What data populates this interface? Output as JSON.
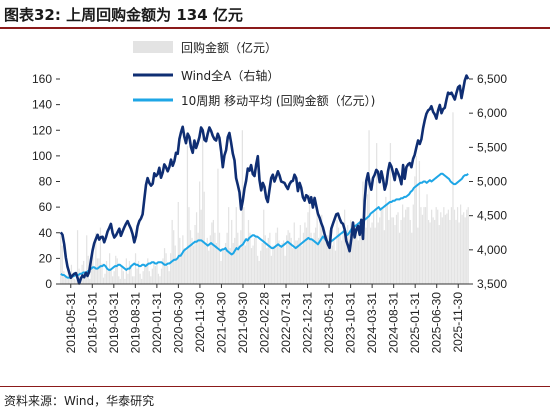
{
  "title": "图表32:   上周回购金额为 134 亿元",
  "source": "资料来源：Wind，华泰研究",
  "colors": {
    "bars": "#e3e3e3",
    "wind": "#0f2e73",
    "ma": "#1ea6e6",
    "rule": "#8b1a1a"
  },
  "chart_data": {
    "type": "bar+line",
    "x_ticks": [
      "2018-05-31",
      "2018-10-31",
      "2019-03-31",
      "2019-08-31",
      "2020-01-31",
      "2020-06-30",
      "2020-11-30",
      "2021-04-30",
      "2021-09-30",
      "2022-02-28",
      "2022-07-31",
      "2022-12-31",
      "2023-05-31",
      "2023-10-31",
      "2024-03-31",
      "2024-08-31",
      "2025-01-31",
      "2025-06-30",
      "2025-11-30"
    ],
    "y_left": {
      "min": 0,
      "max": 160,
      "ticks": [
        0,
        20,
        40,
        60,
        80,
        100,
        120,
        140,
        160
      ]
    },
    "y_right": {
      "min": 3500,
      "max": 6500,
      "ticks": [
        "3,500",
        "4,000",
        "4,500",
        "5,000",
        "5,500",
        "6,000",
        "6,500"
      ]
    },
    "legend": [
      "回购金额（亿元）",
      "Wind全A（右轴）",
      "10周期 移动平均 (回购金额（亿元）)"
    ],
    "series": [
      {
        "name": "回购金额（亿元）",
        "type": "bar",
        "axis": "left",
        "values": [
          38,
          30,
          10,
          6,
          4,
          9,
          7,
          15,
          5,
          4,
          3,
          42,
          12,
          2,
          15,
          18,
          6,
          38,
          22,
          4,
          22,
          28,
          12,
          40,
          20,
          20,
          44,
          16,
          5,
          8,
          18,
          10,
          24,
          12,
          6,
          10,
          22,
          20,
          6,
          4,
          14,
          10,
          4,
          20,
          8,
          18,
          14,
          6,
          6,
          24,
          12,
          18,
          8,
          4,
          10,
          14,
          16,
          20,
          10,
          6,
          12,
          18,
          14,
          16,
          8,
          6,
          12,
          20,
          28,
          24,
          14,
          10,
          24,
          50,
          42,
          30,
          20,
          64,
          36,
          24,
          38,
          28,
          26,
          108,
          60,
          42,
          36,
          30,
          46,
          56,
          40,
          80,
          58,
          120,
          72,
          30,
          36,
          26,
          38,
          48,
          50,
          40,
          32,
          90,
          40,
          18,
          28,
          26,
          32,
          40,
          60,
          28,
          50,
          32,
          36,
          60,
          40,
          30,
          42,
          120,
          60,
          30,
          36,
          50,
          40,
          28,
          30,
          36,
          38,
          22,
          18,
          26,
          32,
          58,
          38,
          28,
          36,
          40,
          22,
          30,
          28,
          40,
          44,
          34,
          28,
          32,
          34,
          22,
          38,
          42,
          40,
          36,
          28,
          48,
          34,
          34,
          36,
          46,
          30,
          40,
          48,
          44,
          56,
          70,
          40,
          34,
          40,
          44,
          60,
          36,
          52,
          54,
          38,
          42,
          36,
          38,
          42,
          44,
          30,
          34,
          26,
          50,
          44,
          38,
          34,
          42,
          58,
          36,
          46,
          40,
          50,
          40,
          44,
          42,
          38,
          34,
          40,
          50,
          80,
          62,
          44,
          70,
          120,
          44,
          48,
          56,
          44,
          110,
          48,
          52,
          60,
          60,
          42,
          68,
          62,
          50,
          110,
          52,
          52,
          46,
          54,
          56,
          40,
          50,
          62,
          52,
          58,
          60,
          60,
          50,
          40,
          62,
          84,
          100,
          44,
          96,
          60,
          54,
          60,
          60,
          70,
          50,
          48,
          58,
          52,
          50,
          60,
          58,
          46,
          56,
          52,
          60,
          54,
          55,
          58,
          50,
          60,
          134,
          58,
          50,
          60,
          48,
          62,
          54,
          56,
          52,
          58,
          60
        ]
      },
      {
        "name": "Wind全A（右轴）",
        "type": "line",
        "axis": "right",
        "values": [
          4256,
          4220,
          4082,
          3891,
          3751,
          3668,
          3591,
          3625,
          3649,
          3660,
          3591,
          3508,
          3580,
          3624,
          3600,
          3665,
          3618,
          3680,
          3842,
          3993,
          4096,
          4160,
          4220,
          4150,
          4185,
          4190,
          4110,
          4180,
          4270,
          4320,
          4380,
          4248,
          4180,
          4210,
          4260,
          4310,
          4205,
          4270,
          4330,
          4380,
          4420,
          4360,
          4310,
          4230,
          4110,
          4200,
          4345,
          4420,
          4460,
          4520,
          4740,
          4950,
          5050,
          4980,
          4940,
          4970,
          5120,
          5080,
          5110,
          5200,
          5055,
          5130,
          5250,
          5210,
          5150,
          5210,
          5320,
          5230,
          5300,
          5420,
          5405,
          5620,
          5720,
          5800,
          5650,
          5560,
          5700,
          5650,
          5500,
          5420,
          5600,
          5490,
          5560,
          5650,
          5790,
          5750,
          5610,
          5590,
          5700,
          5790,
          5740,
          5670,
          5620,
          5600,
          5700,
          5640,
          5450,
          5210,
          5380,
          5460,
          5650,
          5710,
          5570,
          5410,
          5310,
          5050,
          4950,
          4840,
          4590,
          4720,
          4900,
          5010,
          5190,
          5160,
          5240,
          5110,
          5080,
          5250,
          5370,
          5020,
          4870,
          4980,
          4920,
          4760,
          4700,
          4880,
          5050,
          5100,
          5000,
          5070,
          5150,
          5090,
          5000,
          4990,
          4980,
          4930,
          4890,
          4960,
          5000,
          5010,
          5100,
          5050,
          4860,
          4980,
          4910,
          4770,
          4720,
          4800,
          4780,
          4690,
          4770,
          4620,
          4760,
          4640,
          4530,
          4470,
          4390,
          4330,
          4230,
          4150,
          4080,
          4030,
          4310,
          4380,
          4450,
          4520,
          4530,
          4460,
          4400,
          4380,
          4300,
          4130,
          4060,
          3980,
          4160,
          4400,
          4180,
          4300,
          4350,
          4220,
          4440,
          4160,
          4720,
          5010,
          5120,
          4960,
          4880,
          5050,
          5100,
          5170,
          5140,
          4990,
          5150,
          5040,
          4880,
          4970,
          5150,
          5270,
          5220,
          5130,
          5020,
          5180,
          5120,
          5060,
          4960,
          5240,
          5040,
          5210,
          5250,
          5270,
          5210,
          5330,
          5390,
          5500,
          5600,
          5550,
          5620,
          5780,
          5900,
          5990,
          6040,
          6060,
          6100,
          6020,
          5980,
          5920,
          6040,
          6120,
          6000,
          6060,
          6080,
          6200,
          6300,
          6280,
          6300,
          6250,
          6200,
          6300,
          6380,
          6400,
          6220,
          6350,
          6480,
          6550,
          6500
        ]
      },
      {
        "name": "10周期 移动平均 (回购金额（亿元）)",
        "type": "line",
        "axis": "left",
        "values": [
          8,
          7,
          7,
          6,
          5,
          5,
          5,
          6,
          6,
          7,
          7,
          7,
          8,
          8,
          9,
          9,
          9,
          10,
          11,
          12,
          13,
          13,
          12,
          12,
          13,
          14,
          14,
          15,
          14,
          12,
          11,
          11,
          12,
          13,
          14,
          14,
          15,
          15,
          14,
          13,
          12,
          11,
          12,
          12,
          14,
          15,
          16,
          15,
          15,
          14,
          14,
          15,
          15,
          14,
          15,
          16,
          16,
          17,
          17,
          16,
          16,
          17,
          17,
          17,
          16,
          15,
          15,
          16,
          16,
          17,
          18,
          19,
          19,
          20,
          22,
          22,
          24,
          26,
          27,
          28,
          29,
          30,
          31,
          32,
          33,
          33,
          34,
          34,
          34,
          33,
          32,
          31,
          30,
          31,
          32,
          31,
          30,
          29,
          28,
          27,
          26,
          27,
          27,
          28,
          26,
          25,
          24,
          23,
          24,
          26,
          28,
          27,
          29,
          30,
          31,
          33,
          35,
          34,
          36,
          37,
          38,
          38,
          37,
          37,
          36,
          35,
          34,
          33,
          32,
          31,
          30,
          29,
          28,
          28,
          29,
          30,
          31,
          30,
          29,
          30,
          31,
          32,
          33,
          32,
          31,
          30,
          29,
          28,
          29,
          30,
          31,
          32,
          33,
          34,
          35,
          36,
          35,
          35,
          34,
          33,
          32,
          31,
          33,
          35,
          37,
          36,
          34,
          33,
          32,
          33,
          34,
          35,
          36,
          37,
          38,
          39,
          40,
          41,
          42,
          38,
          39,
          41,
          43,
          44,
          45,
          46,
          47,
          48,
          49,
          50,
          50,
          51,
          52,
          53,
          55,
          56,
          57,
          58,
          59,
          60,
          58,
          59,
          60,
          61,
          62,
          63,
          64,
          64,
          65,
          65,
          66,
          66,
          66,
          67,
          67,
          68,
          68,
          69,
          70,
          72,
          73,
          75,
          76,
          77,
          78,
          79,
          79,
          80,
          80,
          79,
          80,
          81,
          80,
          81,
          82,
          83,
          84,
          85,
          86,
          86,
          85,
          84,
          83,
          82,
          80,
          79,
          78,
          78,
          79,
          80,
          81,
          82,
          84,
          85,
          85,
          86
        ]
      }
    ]
  }
}
